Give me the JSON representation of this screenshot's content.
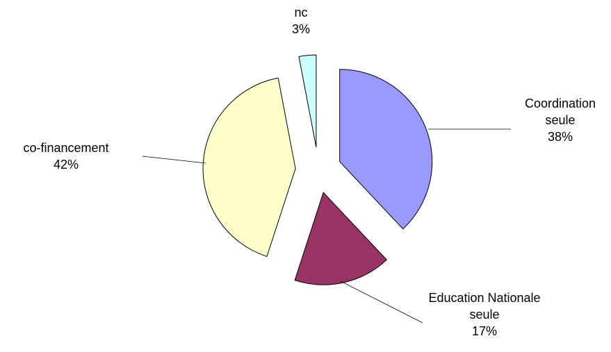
{
  "chart_data": {
    "type": "pie",
    "categories": [
      "Coordination seule",
      "Education Nationale seule",
      "co-financement",
      "nc"
    ],
    "values": [
      38,
      17,
      42,
      3
    ],
    "value_labels": [
      "38%",
      "17%",
      "42%",
      "3%"
    ],
    "colors": [
      "#9999ff",
      "#993366",
      "#ffffcc",
      "#ccffff"
    ]
  }
}
